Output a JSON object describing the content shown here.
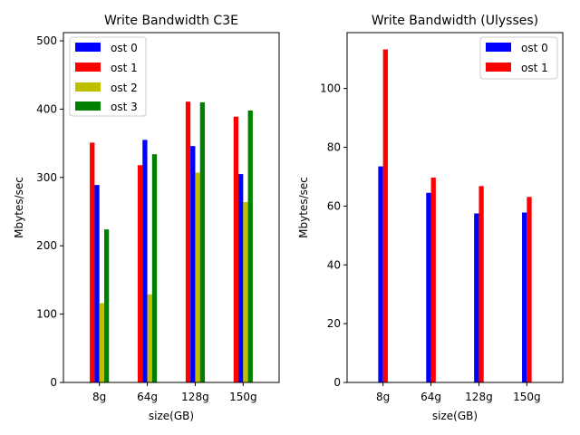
{
  "chart_data": [
    {
      "type": "bar",
      "title": "Write Bandwidth C3E",
      "xlabel": "size(GB)",
      "ylabel": "Mbytes/sec",
      "categories": [
        "8g",
        "64g",
        "128g",
        "150g"
      ],
      "ylim": [
        0,
        512
      ],
      "yticks": [
        0,
        100,
        200,
        300,
        400,
        500
      ],
      "legend_position": "top-left",
      "bar_order": [
        "ost 1",
        "ost 0",
        "ost 2",
        "ost 3"
      ],
      "series": [
        {
          "name": "ost 0",
          "color": "#0000ff",
          "values": [
            289,
            355,
            346,
            305
          ]
        },
        {
          "name": "ost 1",
          "color": "#ff0000",
          "values": [
            351,
            318,
            411,
            389
          ]
        },
        {
          "name": "ost 2",
          "color": "#bfbf00",
          "values": [
            116,
            129,
            307,
            264
          ]
        },
        {
          "name": "ost 3",
          "color": "#008000",
          "values": [
            224,
            334,
            410,
            398
          ]
        }
      ]
    },
    {
      "type": "bar",
      "title": "Write Bandwidth (Ulysses)",
      "xlabel": "size(GB)",
      "ylabel": "Mbytes/sec",
      "categories": [
        "8g",
        "64g",
        "128g",
        "150g"
      ],
      "ylim": [
        0,
        119
      ],
      "yticks": [
        0,
        20,
        40,
        60,
        80,
        100
      ],
      "legend_position": "top-right",
      "bar_order": [
        "ost 0",
        "ost 1"
      ],
      "series": [
        {
          "name": "ost 0",
          "color": "#0000ff",
          "values": [
            73.5,
            64.5,
            57.5,
            57.8
          ]
        },
        {
          "name": "ost 1",
          "color": "#ff0000",
          "values": [
            113.3,
            69.7,
            66.8,
            63.1
          ]
        }
      ]
    }
  ]
}
